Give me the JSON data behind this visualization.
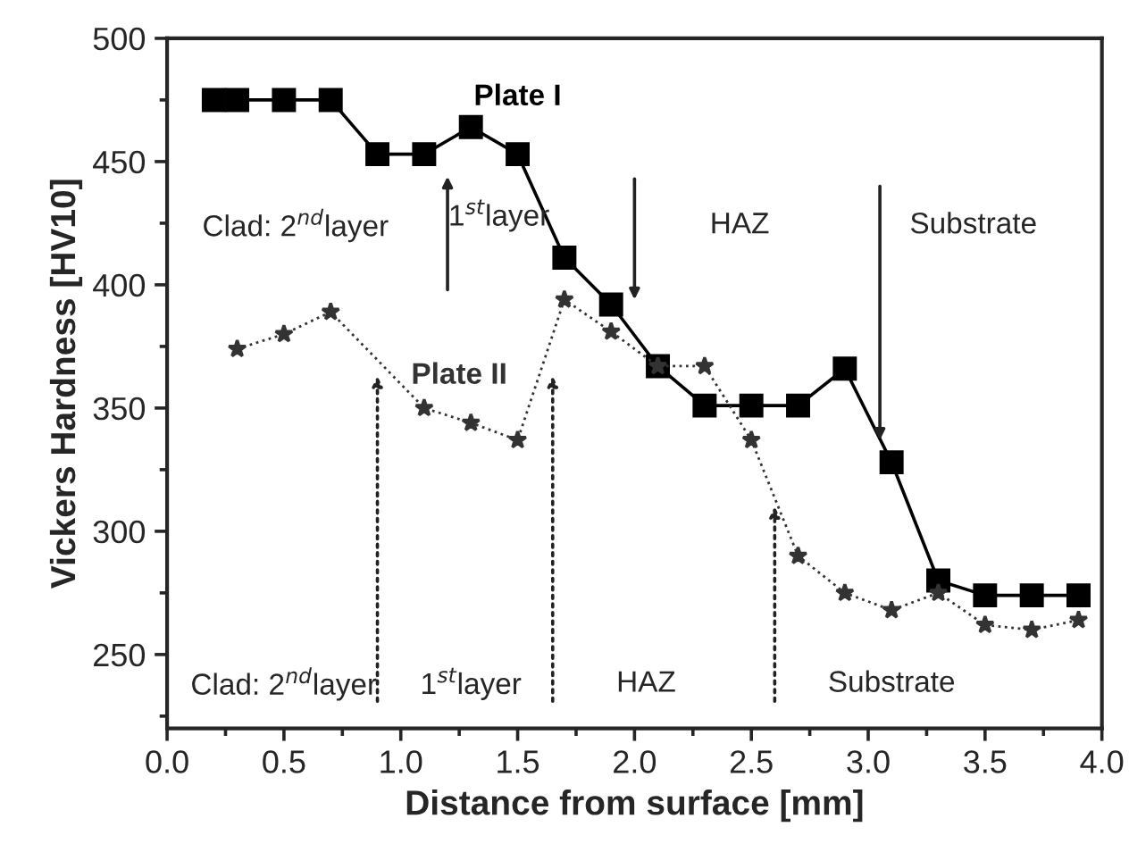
{
  "chart_data": {
    "type": "line",
    "xlabel": "Distance from surface [mm]",
    "ylabel": "Vickers Hardness [HV10]",
    "xlim": [
      0.0,
      4.0
    ],
    "xticks": [
      {
        "value": 0,
        "label": "0.0"
      },
      0.5,
      {
        "value": 1,
        "label": "1.0"
      },
      1.5,
      {
        "value": 2,
        "label": "2.0"
      },
      2.5,
      {
        "value": 3,
        "label": "3.0"
      },
      3.5,
      {
        "value": 4,
        "label": "4.0"
      }
    ],
    "ylim": [
      220,
      500
    ],
    "yticks": [
      250,
      300,
      350,
      400,
      450,
      500
    ],
    "grid": false,
    "legend": false,
    "series": [
      {
        "name": "Plate I",
        "color": "#000000",
        "marker": "square",
        "line_style": "solid",
        "x": [
          0.2,
          0.3,
          0.5,
          0.7,
          0.9,
          1.1,
          1.3,
          1.5,
          1.7,
          1.9,
          2.1,
          2.3,
          2.5,
          2.7,
          2.9,
          3.1,
          3.3,
          3.5,
          3.7,
          3.9
        ],
        "values": [
          475,
          475,
          475,
          475,
          453,
          453,
          464,
          453,
          411,
          392,
          367,
          351,
          351,
          351,
          366,
          328,
          280,
          274,
          274,
          274
        ]
      },
      {
        "name": "Plate II",
        "color": "#333333",
        "marker": "star",
        "line_style": "dotted",
        "x": [
          0.3,
          0.5,
          0.7,
          1.1,
          1.3,
          1.5,
          1.7,
          1.9,
          2.1,
          2.3,
          2.5,
          2.7,
          2.9,
          3.1,
          3.3,
          3.5,
          3.7,
          3.9
        ],
        "values": [
          374,
          380,
          389,
          350,
          344,
          337,
          394,
          381,
          367,
          367,
          337,
          290,
          275,
          268,
          275,
          262,
          260,
          264
        ]
      }
    ],
    "annotations": [
      "Clad: 2$^{nd}$layer",
      "1$^{st}$layer",
      "HAZ",
      "Substrate",
      "Clad: 2$^{nd}$layer",
      "1$^{st}$layer",
      "HAZ",
      "Substrate"
    ]
  }
}
